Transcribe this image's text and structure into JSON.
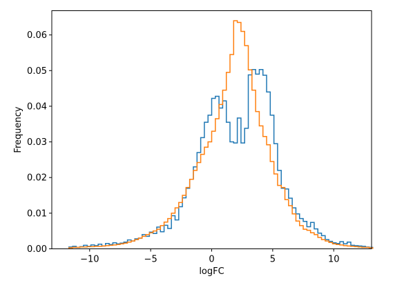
{
  "chart_data": {
    "type": "histogram",
    "title": "",
    "xlabel": "logFC",
    "ylabel": "Frequency",
    "xlim": [
      -13.1,
      13.1
    ],
    "ylim": [
      0,
      0.0668
    ],
    "grid": false,
    "legend": "none",
    "x_ticks": [
      -10,
      -5,
      0,
      5,
      10
    ],
    "x_tick_labels": [
      "−10",
      "−5",
      "0",
      "5",
      "10"
    ],
    "y_ticks": [
      0.0,
      0.01,
      0.02,
      0.03,
      0.04,
      0.05,
      0.06
    ],
    "y_tick_labels": [
      "0.00",
      "0.01",
      "0.02",
      "0.03",
      "0.04",
      "0.05",
      "0.06"
    ],
    "bin_width": 0.3,
    "series": [
      {
        "color": "#1f77b4",
        "bin_start": -11.7,
        "values": [
          0.0005,
          0.0007,
          0.0004,
          0.0006,
          0.001,
          0.0007,
          0.0011,
          0.0009,
          0.0013,
          0.0008,
          0.0015,
          0.0012,
          0.0017,
          0.0014,
          0.0016,
          0.0019,
          0.0025,
          0.0022,
          0.0028,
          0.003,
          0.004,
          0.0035,
          0.0047,
          0.0043,
          0.0061,
          0.0048,
          0.0066,
          0.0057,
          0.0093,
          0.0081,
          0.0118,
          0.0143,
          0.017,
          0.0195,
          0.023,
          0.027,
          0.0312,
          0.0355,
          0.0375,
          0.0422,
          0.0428,
          0.0395,
          0.0415,
          0.0355,
          0.03,
          0.0297,
          0.0367,
          0.0297,
          0.0338,
          0.0488,
          0.0503,
          0.049,
          0.0503,
          0.0487,
          0.044,
          0.0375,
          0.0295,
          0.022,
          0.017,
          0.0168,
          0.0142,
          0.0115,
          0.0098,
          0.0085,
          0.0077,
          0.0062,
          0.0074,
          0.0056,
          0.0044,
          0.0037,
          0.0026,
          0.0021,
          0.0017,
          0.0015,
          0.002,
          0.0014,
          0.0019,
          0.001,
          0.0009,
          0.0008,
          0.0007,
          0.0005,
          0.0004
        ]
      },
      {
        "color": "#ff7f0e",
        "bin_start": -11.7,
        "values": [
          0.0003,
          0.0004,
          0.0004,
          0.0005,
          0.0005,
          0.0006,
          0.0006,
          0.0007,
          0.0007,
          0.0008,
          0.0009,
          0.001,
          0.0011,
          0.0012,
          0.0014,
          0.0016,
          0.0019,
          0.0022,
          0.0026,
          0.003,
          0.0035,
          0.004,
          0.0045,
          0.005,
          0.0055,
          0.0065,
          0.0075,
          0.0085,
          0.01,
          0.0115,
          0.013,
          0.015,
          0.0172,
          0.0195,
          0.022,
          0.0242,
          0.0265,
          0.0285,
          0.03,
          0.033,
          0.0365,
          0.0405,
          0.0445,
          0.0495,
          0.0545,
          0.064,
          0.0635,
          0.061,
          0.057,
          0.0502,
          0.0445,
          0.0385,
          0.0345,
          0.0315,
          0.0292,
          0.0245,
          0.021,
          0.0178,
          0.0172,
          0.0138,
          0.0121,
          0.0098,
          0.0078,
          0.0065,
          0.0055,
          0.0052,
          0.0045,
          0.004,
          0.0032,
          0.0026,
          0.0022,
          0.0018,
          0.0014,
          0.0012,
          0.0011,
          0.0009,
          0.0008,
          0.0007,
          0.0006,
          0.0005,
          0.0004,
          0.0004,
          0.0003
        ]
      }
    ]
  }
}
